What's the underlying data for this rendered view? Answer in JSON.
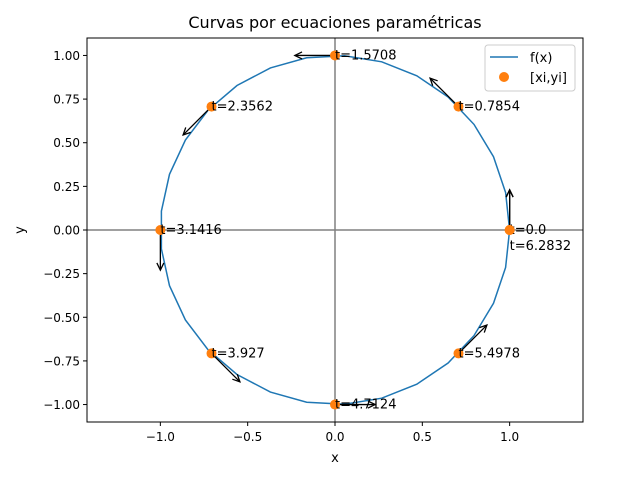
{
  "chart_data": {
    "type": "line",
    "title": "Curvas por ecuaciones paramétricas",
    "xlabel": "x",
    "ylabel": "y",
    "xlim": [
      -1.42,
      1.42
    ],
    "ylim": [
      -1.1,
      1.1
    ],
    "xticks": [
      -1.0,
      -0.5,
      0.0,
      0.5,
      1.0
    ],
    "xtick_labels": [
      "−1.0",
      "−0.5",
      "0.0",
      "0.5",
      "1.0"
    ],
    "yticks": [
      1.0,
      0.75,
      0.5,
      0.25,
      0.0,
      -0.25,
      -0.5,
      -0.75,
      -1.0
    ],
    "ytick_labels": [
      "1.00",
      "0.75",
      "0.50",
      "0.25",
      "0.00",
      "−0.25",
      "−0.50",
      "−0.75",
      "−1.00"
    ],
    "grid": false,
    "axis_lines": {
      "x": 0,
      "y": 0,
      "color": "#808080"
    },
    "legend_placement": "top-right",
    "curve": {
      "name": "f(x)",
      "color": "#1f77b4",
      "equation": {
        "x": "cos(t)",
        "y": "sin(t)"
      },
      "t_range": [
        0,
        6.2832
      ],
      "samples": 30
    },
    "points": {
      "name": "[xi,yi]",
      "color": "#ff7f0e",
      "items": [
        {
          "t": 0.0,
          "x": 1.0,
          "y": 0.0,
          "label": "t=0.0"
        },
        {
          "t": 0.7854,
          "x": 0.7071,
          "y": 0.7071,
          "label": "t=0.7854"
        },
        {
          "t": 1.5708,
          "x": 0.0,
          "y": 1.0,
          "label": "t=1.5708"
        },
        {
          "t": 2.3562,
          "x": -0.7071,
          "y": 0.7071,
          "label": "t=2.3562"
        },
        {
          "t": 3.1416,
          "x": -1.0,
          "y": 0.0,
          "label": "t=3.1416"
        },
        {
          "t": 3.927,
          "x": -0.7071,
          "y": -0.7071,
          "label": "t=3.927"
        },
        {
          "t": 4.7124,
          "x": 0.0,
          "y": -1.0,
          "label": "t=4.7124"
        },
        {
          "t": 5.4978,
          "x": 0.7071,
          "y": -0.7071,
          "label": "t=5.4978"
        },
        {
          "t": 6.2832,
          "x": 1.0,
          "y": 0.0,
          "label": "t=6.2832"
        }
      ]
    },
    "arrows": {
      "color": "#000000",
      "direction": "tangent (-sin t, cos t)",
      "length": 0.23
    }
  }
}
